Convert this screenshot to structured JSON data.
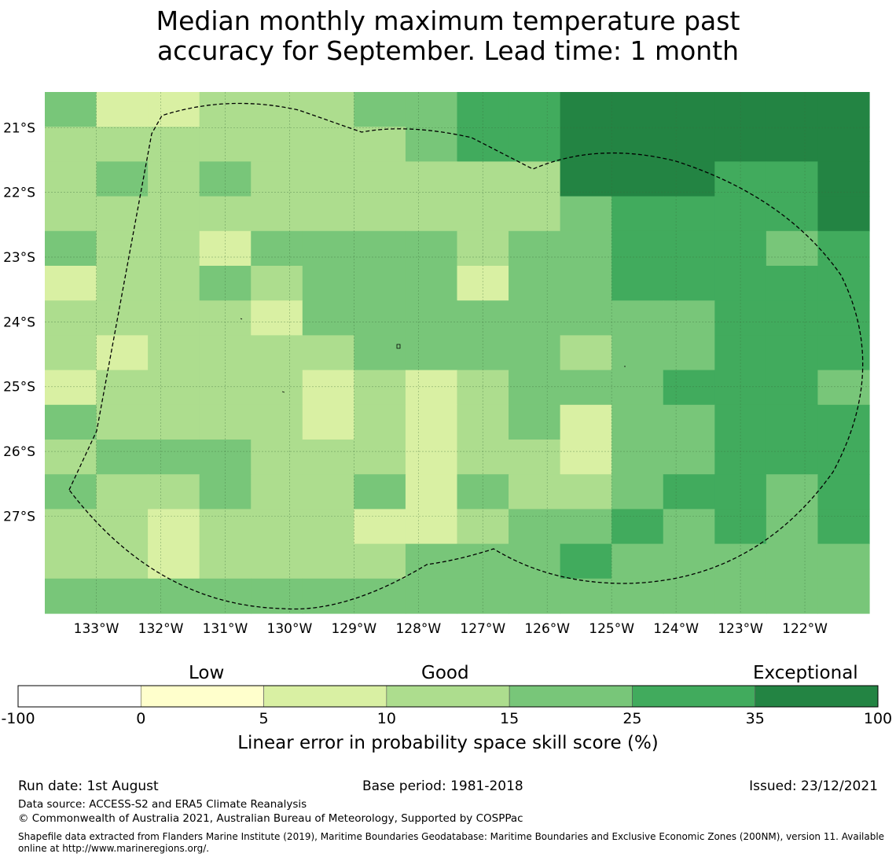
{
  "title_line1": "Median monthly maximum temperature past",
  "title_line2": "accuracy for September. Lead time: 1 month",
  "map": {
    "lon_range": [
      -133.8,
      -121.0
    ],
    "lat_range": [
      -28.5,
      -20.45
    ],
    "x_tick_values": [
      -133,
      -132,
      -131,
      -130,
      -129,
      -128,
      -127,
      -126,
      -125,
      -124,
      -123,
      -122
    ],
    "x_tick_labels": [
      "133°W",
      "132°W",
      "131°W",
      "130°W",
      "129°W",
      "128°W",
      "127°W",
      "126°W",
      "125°W",
      "124°W",
      "123°W",
      "122°W"
    ],
    "y_tick_values": [
      -21,
      -22,
      -23,
      -24,
      -25,
      -26,
      -27
    ],
    "y_tick_labels": [
      "21°S",
      "22°S",
      "23°S",
      "24°S",
      "25°S",
      "26°S",
      "27°S"
    ],
    "grid": true,
    "skill_class_grid": [
      [
        4,
        2,
        2,
        3,
        3,
        3,
        4,
        4,
        5,
        5,
        6,
        6,
        6,
        6,
        6,
        6
      ],
      [
        3,
        3,
        3,
        3,
        3,
        3,
        3,
        4,
        5,
        5,
        6,
        6,
        6,
        6,
        6,
        6
      ],
      [
        3,
        4,
        3,
        4,
        3,
        3,
        3,
        3,
        3,
        3,
        6,
        6,
        6,
        5,
        5,
        6
      ],
      [
        3,
        3,
        3,
        3,
        3,
        3,
        3,
        3,
        3,
        3,
        4,
        5,
        5,
        5,
        5,
        6
      ],
      [
        4,
        3,
        3,
        2,
        4,
        4,
        4,
        4,
        3,
        4,
        4,
        5,
        5,
        5,
        4,
        5
      ],
      [
        2,
        3,
        3,
        4,
        3,
        4,
        4,
        4,
        2,
        4,
        4,
        5,
        5,
        5,
        5,
        5
      ],
      [
        3,
        3,
        3,
        3,
        2,
        4,
        4,
        4,
        4,
        4,
        4,
        4,
        4,
        5,
        5,
        5
      ],
      [
        3,
        2,
        3,
        3,
        3,
        3,
        4,
        4,
        4,
        4,
        3,
        4,
        4,
        5,
        5,
        5
      ],
      [
        2,
        3,
        3,
        3,
        3,
        2,
        3,
        2,
        3,
        4,
        4,
        4,
        5,
        5,
        5,
        4
      ],
      [
        4,
        3,
        3,
        3,
        3,
        2,
        3,
        2,
        3,
        4,
        2,
        4,
        4,
        5,
        5,
        5
      ],
      [
        3,
        4,
        4,
        4,
        3,
        3,
        3,
        2,
        3,
        3,
        2,
        4,
        4,
        5,
        5,
        5
      ],
      [
        4,
        3,
        3,
        4,
        3,
        3,
        4,
        2,
        4,
        3,
        3,
        4,
        5,
        5,
        4,
        5
      ],
      [
        3,
        3,
        2,
        3,
        3,
        3,
        2,
        2,
        3,
        4,
        4,
        5,
        4,
        5,
        4,
        5
      ],
      [
        3,
        3,
        2,
        3,
        3,
        3,
        3,
        4,
        4,
        4,
        5,
        4,
        4,
        4,
        4,
        4
      ],
      [
        4,
        4,
        4,
        4,
        4,
        4,
        4,
        4,
        4,
        4,
        4,
        4,
        4,
        4,
        4,
        4
      ]
    ]
  },
  "colorbar": {
    "colors": [
      "#ffffff",
      "#ffffcc",
      "#d9f0a3",
      "#addd8e",
      "#78c679",
      "#41ab5d",
      "#238443"
    ],
    "boundaries": [
      -100,
      0,
      5,
      10,
      15,
      25,
      35,
      100
    ],
    "tick_labels": [
      "-100",
      "0",
      "5",
      "10",
      "15",
      "25",
      "35",
      "100"
    ],
    "category_labels": [
      "Low",
      "Good",
      "Exceptional"
    ],
    "label": "Linear error in probability space skill score (%)"
  },
  "footer": {
    "run_date": "Run date: 1st August",
    "base_period": "Base period: 1981-2018",
    "issued": "Issued: 23/12/2021",
    "data_source": "Data source: ACCESS-S2 and ERA5 Climate Reanalysis",
    "copyright": "© Commonwealth of Australia 2021, Australian Bureau of Meteorology, Supported by COSPPac",
    "shapefile_line1": "Shapefile data extracted from Flanders Marine Institute (2019), Maritime Boundaries Geodatabase: Maritime Boundaries and Exclusive Economic Zones (200NM), version 11. Available",
    "shapefile_line2": "online at http://www.marineregions.org/."
  }
}
